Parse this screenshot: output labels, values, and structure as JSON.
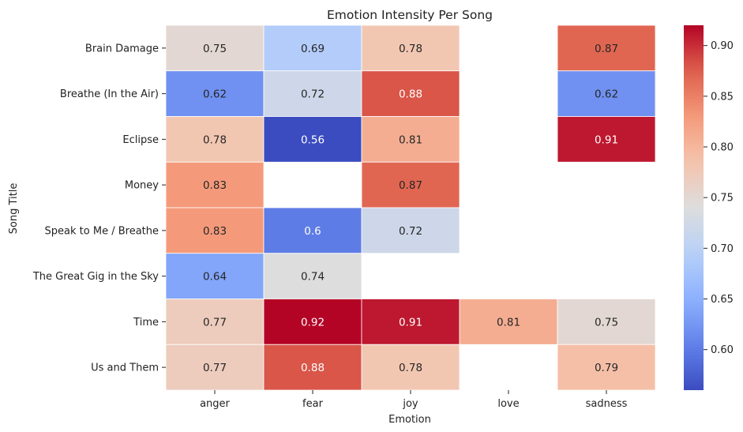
{
  "chart_data": {
    "type": "heatmap",
    "title": "Emotion Intensity Per Song",
    "xlabel": "Emotion",
    "ylabel": "Song Title",
    "x_categories": [
      "anger",
      "fear",
      "joy",
      "love",
      "sadness"
    ],
    "y_categories": [
      "Brain Damage",
      "Breathe (In the Air)",
      "Eclipse",
      "Money",
      "Speak to Me / Breathe",
      "The Great Gig in the Sky",
      "Time",
      "Us and Them"
    ],
    "values": [
      [
        0.75,
        0.69,
        0.78,
        null,
        0.87
      ],
      [
        0.62,
        0.72,
        0.88,
        null,
        0.62
      ],
      [
        0.78,
        0.56,
        0.81,
        null,
        0.91
      ],
      [
        0.83,
        null,
        0.87,
        null,
        null
      ],
      [
        0.83,
        0.6,
        0.72,
        null,
        null
      ],
      [
        0.64,
        0.74,
        null,
        null,
        null
      ],
      [
        0.77,
        0.92,
        0.91,
        0.81,
        0.75
      ],
      [
        0.77,
        0.88,
        0.78,
        null,
        0.79
      ]
    ],
    "colormap": "coolwarm",
    "vmin": 0.56,
    "vmax": 0.92,
    "colorbar_ticks": [
      "0.60",
      "0.65",
      "0.70",
      "0.75",
      "0.80",
      "0.85",
      "0.90"
    ],
    "annotations": true
  }
}
